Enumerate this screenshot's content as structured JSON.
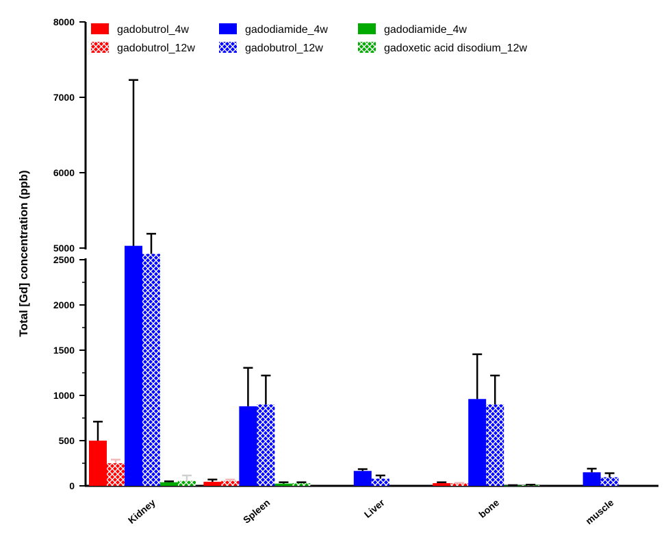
{
  "chart_data": {
    "type": "bar",
    "title": "",
    "xlabel": "",
    "ylabel": "Total [Gd] concentration (ppb)",
    "categories": [
      "Kidney",
      "Spleen",
      "Liver",
      "bone",
      "muscle"
    ],
    "axis_break": {
      "lower_range": [
        0,
        2500
      ],
      "upper_range": [
        5000,
        8000
      ]
    },
    "lower_ticks": [
      0,
      500,
      1000,
      1500,
      2000,
      2500
    ],
    "upper_ticks": [
      5000,
      6000,
      7000,
      8000
    ],
    "legend_position": "top",
    "series": [
      {
        "name": "gadobutrol_4w",
        "color": "#ff0000",
        "pattern": "solid",
        "values": [
          500,
          45,
          0,
          30,
          0
        ],
        "errors": [
          210,
          25,
          0,
          10,
          0
        ]
      },
      {
        "name": "gadobutrol_12w",
        "color": "#ff0000",
        "pattern": "crosshatch",
        "values": [
          250,
          55,
          0,
          28,
          0
        ],
        "errors": [
          40,
          15,
          0,
          5,
          0
        ]
      },
      {
        "name": "gadodiamide_4w",
        "color": "#0000ff",
        "pattern": "solid",
        "values": [
          5030,
          880,
          165,
          960,
          150
        ],
        "errors": [
          2200,
          425,
          20,
          495,
          40
        ]
      },
      {
        "name": "gadobutrol_12w",
        "color": "#0000ff",
        "pattern": "crosshatch",
        "values": [
          4920,
          900,
          80,
          900,
          95
        ],
        "errors": [
          270,
          320,
          35,
          320,
          45
        ]
      },
      {
        "name": "gadodiamide_4w",
        "color": "#00aa00",
        "pattern": "solid",
        "values": [
          40,
          25,
          0,
          5,
          0
        ],
        "errors": [
          10,
          15,
          0,
          3,
          0
        ]
      },
      {
        "name": "gadoxetic acid disodium_12w",
        "color": "#00aa00",
        "pattern": "crosshatch",
        "values": [
          55,
          30,
          0,
          8,
          0
        ],
        "errors": [
          60,
          10,
          0,
          5,
          0
        ]
      }
    ]
  }
}
